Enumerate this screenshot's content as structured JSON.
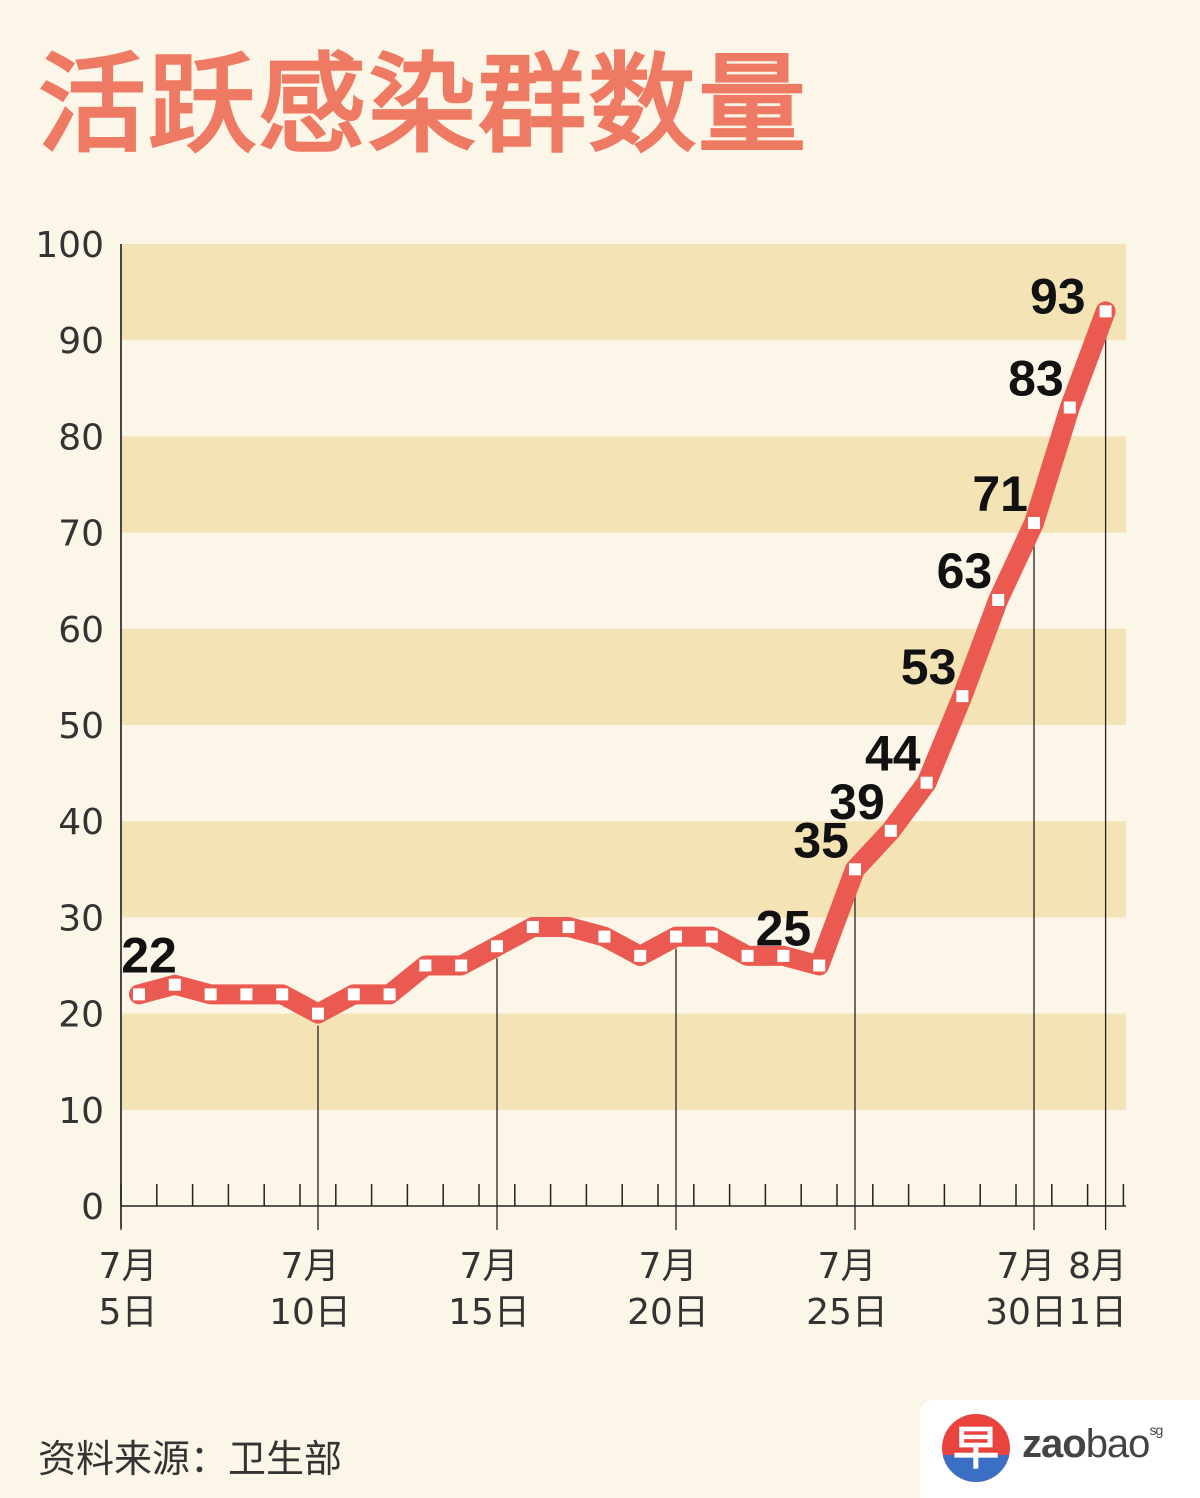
{
  "title": "活跃感染群数量",
  "source": "资料来源：卫生部",
  "logo": {
    "glyph": "早",
    "zao": "zao",
    "bao": "bao",
    "sup": "sg"
  },
  "colors": {
    "line": "#eb5a50",
    "band": "#f3e3b5",
    "background": "#fcf6e9",
    "title": "#ee7a63"
  },
  "chart_data": {
    "type": "line",
    "title": "活跃感染群数量",
    "ylim": [
      0,
      100
    ],
    "yticks": [
      0,
      10,
      20,
      30,
      40,
      50,
      60,
      70,
      80,
      90,
      100
    ],
    "x_tick_labels": [
      {
        "index": 0,
        "month": "7月",
        "day": "5日"
      },
      {
        "index": 5,
        "month": "7月",
        "day": "10日"
      },
      {
        "index": 10,
        "month": "7月",
        "day": "15日"
      },
      {
        "index": 15,
        "month": "7月",
        "day": "20日"
      },
      {
        "index": 20,
        "month": "7月",
        "day": "25日"
      },
      {
        "index": 25,
        "month": "7月",
        "day": "30日"
      },
      {
        "index": 27,
        "month": "8月",
        "day": "1日"
      }
    ],
    "series": [
      {
        "x": [
          "7月5日",
          "7月6日",
          "7月7日",
          "7月8日",
          "7月9日",
          "7月10日",
          "7月11日",
          "7月12日",
          "7月13日",
          "7月14日",
          "7月15日",
          "7月16日",
          "7月17日",
          "7月18日",
          "7月19日",
          "7月20日",
          "7月21日",
          "7月22日",
          "7月23日",
          "7月24日",
          "7月25日",
          "7月26日",
          "7月27日",
          "7月28日",
          "7月29日",
          "7月30日",
          "7月31日",
          "8月1日"
        ],
        "values": [
          22,
          23,
          22,
          22,
          22,
          20,
          22,
          22,
          25,
          25,
          27,
          29,
          29,
          28,
          26,
          28,
          28,
          26,
          26,
          25,
          35,
          39,
          44,
          53,
          63,
          71,
          83,
          93
        ]
      }
    ],
    "data_labels": [
      {
        "index": 0,
        "text": "22"
      },
      {
        "index": 19,
        "text": "25"
      },
      {
        "index": 20,
        "text": "35"
      },
      {
        "index": 21,
        "text": "39"
      },
      {
        "index": 22,
        "text": "44"
      },
      {
        "index": 23,
        "text": "53"
      },
      {
        "index": 24,
        "text": "63"
      },
      {
        "index": 25,
        "text": "71"
      },
      {
        "index": 26,
        "text": "83"
      },
      {
        "index": 27,
        "text": "93"
      }
    ]
  }
}
